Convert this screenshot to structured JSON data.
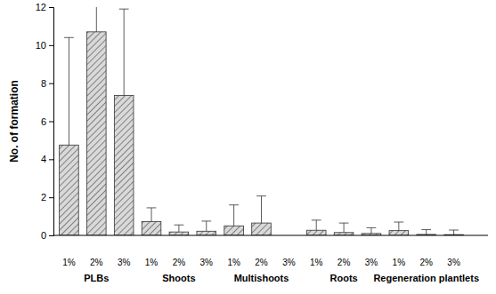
{
  "chart_data": {
    "type": "bar",
    "y_label": "No. of formation",
    "categories": [
      "PLBs",
      "Shoots",
      "Multishoots",
      "Roots",
      "Regeneration plantlets"
    ],
    "series": [
      {
        "name": "1%",
        "color": "#d9d9d9",
        "values": [
          4.75,
          0.72,
          0.5,
          0.27,
          0.25
        ],
        "errors": [
          5.65,
          0.73,
          1.1,
          0.53,
          0.45
        ]
      },
      {
        "name": "2%",
        "color": "#d9d9d9",
        "values": [
          10.7,
          0.18,
          0.65,
          0.15,
          0.05
        ],
        "errors": [
          1.5,
          0.37,
          1.42,
          0.5,
          0.25
        ]
      },
      {
        "name": "3%",
        "color": "#d9d9d9",
        "values": [
          7.35,
          0.22,
          0,
          0.1,
          0.04
        ],
        "errors": [
          4.55,
          0.53,
          0,
          0.3,
          0.24
        ]
      }
    ],
    "ylim": [
      0,
      12
    ],
    "yticks": [
      0,
      2,
      4,
      6,
      8,
      10,
      12
    ],
    "grid": false
  }
}
